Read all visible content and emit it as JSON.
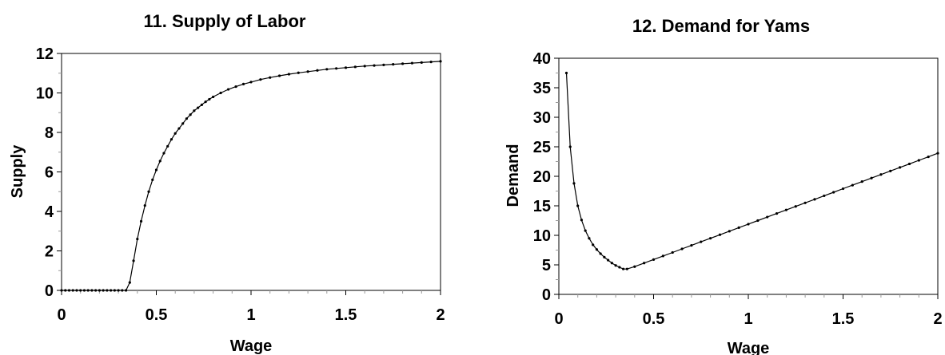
{
  "chart_data": [
    {
      "type": "line",
      "title": "11. Supply of Labor",
      "xlabel": "Wage",
      "ylabel": "Supply",
      "xlim": [
        0,
        2
      ],
      "ylim": [
        0,
        12
      ],
      "xticks": [
        "0",
        "0.5",
        "1",
        "1.5",
        "2"
      ],
      "yticks": [
        "0",
        "2",
        "4",
        "6",
        "8",
        "10",
        "12"
      ],
      "grid": false,
      "markers": "dots",
      "series": [
        {
          "values": [
            [
              0.0,
              0
            ],
            [
              0.02,
              0
            ],
            [
              0.04,
              0
            ],
            [
              0.06,
              0
            ],
            [
              0.08,
              0
            ],
            [
              0.1,
              0
            ],
            [
              0.12,
              0
            ],
            [
              0.14,
              0
            ],
            [
              0.16,
              0
            ],
            [
              0.18,
              0
            ],
            [
              0.2,
              0
            ],
            [
              0.22,
              0
            ],
            [
              0.24,
              0
            ],
            [
              0.26,
              0
            ],
            [
              0.28,
              0
            ],
            [
              0.3,
              0
            ],
            [
              0.32,
              0
            ],
            [
              0.34,
              0
            ],
            [
              0.36,
              0.4
            ],
            [
              0.38,
              1.5
            ],
            [
              0.4,
              2.6
            ],
            [
              0.42,
              3.5
            ],
            [
              0.44,
              4.3
            ],
            [
              0.46,
              5.0
            ],
            [
              0.48,
              5.6
            ],
            [
              0.5,
              6.1
            ],
            [
              0.52,
              6.55
            ],
            [
              0.54,
              6.95
            ],
            [
              0.56,
              7.3
            ],
            [
              0.58,
              7.65
            ],
            [
              0.6,
              7.95
            ],
            [
              0.62,
              8.2
            ],
            [
              0.64,
              8.45
            ],
            [
              0.66,
              8.7
            ],
            [
              0.68,
              8.9
            ],
            [
              0.7,
              9.1
            ],
            [
              0.72,
              9.25
            ],
            [
              0.74,
              9.4
            ],
            [
              0.76,
              9.55
            ],
            [
              0.78,
              9.68
            ],
            [
              0.8,
              9.8
            ],
            [
              0.84,
              10.0
            ],
            [
              0.88,
              10.18
            ],
            [
              0.92,
              10.32
            ],
            [
              0.96,
              10.45
            ],
            [
              1.0,
              10.55
            ],
            [
              1.05,
              10.68
            ],
            [
              1.1,
              10.78
            ],
            [
              1.15,
              10.87
            ],
            [
              1.2,
              10.95
            ],
            [
              1.25,
              11.02
            ],
            [
              1.3,
              11.08
            ],
            [
              1.35,
              11.14
            ],
            [
              1.4,
              11.2
            ],
            [
              1.45,
              11.24
            ],
            [
              1.5,
              11.28
            ],
            [
              1.55,
              11.32
            ],
            [
              1.6,
              11.36
            ],
            [
              1.65,
              11.39
            ],
            [
              1.7,
              11.42
            ],
            [
              1.75,
              11.45
            ],
            [
              1.8,
              11.48
            ],
            [
              1.85,
              11.51
            ],
            [
              1.9,
              11.54
            ],
            [
              1.95,
              11.57
            ],
            [
              2.0,
              11.6
            ]
          ]
        }
      ]
    },
    {
      "type": "line",
      "title": "12. Demand for Yams",
      "xlabel": "Wage",
      "ylabel": "Demand",
      "xlim": [
        0,
        2
      ],
      "ylim": [
        0,
        40
      ],
      "xticks": [
        "0",
        "0.5",
        "1",
        "1.5",
        "2"
      ],
      "yticks": [
        "0",
        "5",
        "10",
        "15",
        "20",
        "25",
        "30",
        "35",
        "40"
      ],
      "grid": false,
      "markers": "dots",
      "series": [
        {
          "values": [
            [
              0.04,
              37.5
            ],
            [
              0.06,
              25.0
            ],
            [
              0.08,
              18.8
            ],
            [
              0.1,
              15.0
            ],
            [
              0.12,
              12.6
            ],
            [
              0.14,
              10.8
            ],
            [
              0.16,
              9.5
            ],
            [
              0.18,
              8.4
            ],
            [
              0.2,
              7.6
            ],
            [
              0.22,
              6.9
            ],
            [
              0.24,
              6.3
            ],
            [
              0.26,
              5.8
            ],
            [
              0.28,
              5.3
            ],
            [
              0.3,
              4.9
            ],
            [
              0.32,
              4.6
            ],
            [
              0.34,
              4.3
            ],
            [
              0.36,
              4.3
            ],
            [
              0.4,
              4.7
            ],
            [
              0.45,
              5.3
            ],
            [
              0.5,
              5.9
            ],
            [
              0.55,
              6.5
            ],
            [
              0.6,
              7.1
            ],
            [
              0.65,
              7.7
            ],
            [
              0.7,
              8.3
            ],
            [
              0.75,
              8.9
            ],
            [
              0.8,
              9.5
            ],
            [
              0.85,
              10.1
            ],
            [
              0.9,
              10.7
            ],
            [
              0.95,
              11.3
            ],
            [
              1.0,
              11.9
            ],
            [
              1.05,
              12.5
            ],
            [
              1.1,
              13.1
            ],
            [
              1.15,
              13.7
            ],
            [
              1.2,
              14.3
            ],
            [
              1.25,
              14.9
            ],
            [
              1.3,
              15.5
            ],
            [
              1.35,
              16.1
            ],
            [
              1.4,
              16.7
            ],
            [
              1.45,
              17.3
            ],
            [
              1.5,
              17.9
            ],
            [
              1.55,
              18.5
            ],
            [
              1.6,
              19.1
            ],
            [
              1.65,
              19.7
            ],
            [
              1.7,
              20.3
            ],
            [
              1.75,
              20.9
            ],
            [
              1.8,
              21.5
            ],
            [
              1.85,
              22.1
            ],
            [
              1.9,
              22.7
            ],
            [
              1.95,
              23.3
            ],
            [
              2.0,
              23.9
            ]
          ]
        }
      ]
    }
  ]
}
